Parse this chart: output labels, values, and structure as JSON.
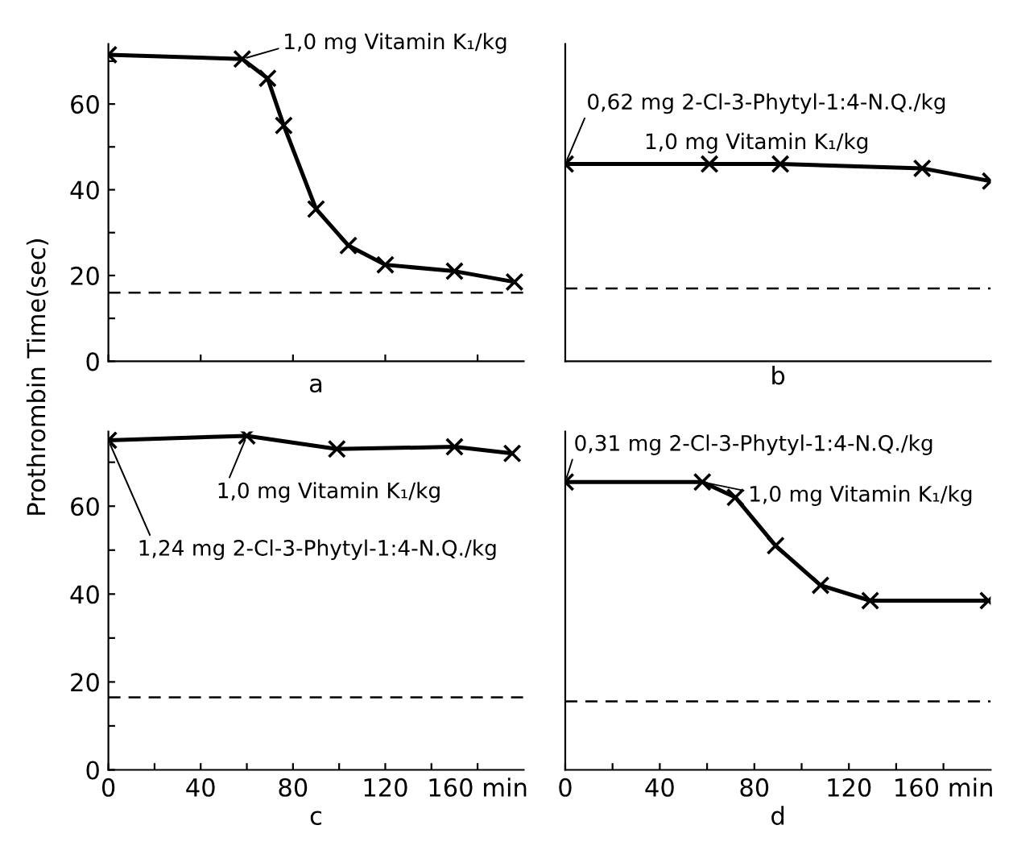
{
  "chart_data": [
    {
      "type": "line",
      "xlabel": "a",
      "ylabel": "Prothrombin Time(sec)",
      "xlim": [
        0,
        180
      ],
      "ylim": [
        0,
        74
      ],
      "xticks": [
        {
          "value": 0,
          "label": null
        },
        {
          "value": 40,
          "label": null
        },
        {
          "value": 80,
          "label": null
        },
        {
          "value": 120,
          "label": null
        },
        {
          "value": 160,
          "label": null
        }
      ],
      "yticks": [
        0,
        {
          "value": 10,
          "label": null
        },
        20,
        {
          "value": 30,
          "label": null
        },
        40,
        {
          "value": 50,
          "label": null
        },
        60,
        {
          "value": 70,
          "label": null
        }
      ],
      "tick_labels": "y",
      "marker": "cross",
      "line_style": "solid",
      "grid": false,
      "legend": false,
      "series": [
        {
          "color": "#000000",
          "x": [
            0,
            58,
            69,
            76,
            90,
            104,
            120,
            150,
            176
          ],
          "values": [
            71.5,
            70.5,
            66,
            55,
            35.5,
            27,
            22.5,
            21,
            18.5
          ]
        }
      ],
      "ref_lines": [
        {
          "axis": "y",
          "value": 16,
          "color": "#000000",
          "line_style": "dashed"
        }
      ],
      "annotations": [
        {
          "text": "1,0 mg Vitamin K₁/kg",
          "x": 58,
          "y": 70.5
        }
      ]
    },
    {
      "type": "line",
      "xlabel": "b",
      "xlim": [
        0,
        180
      ],
      "ylim": [
        0,
        74
      ],
      "tick_labels": false,
      "marker": "cross",
      "line_style": "solid",
      "grid": false,
      "legend": false,
      "series": [
        {
          "color": "#000000",
          "x": [
            0,
            61,
            91,
            151,
            180
          ],
          "values": [
            46,
            46,
            46,
            45,
            42
          ]
        }
      ],
      "ref_lines": [
        {
          "axis": "y",
          "value": 17,
          "color": "#000000",
          "line_style": "dashed"
        }
      ],
      "annotations": [
        {
          "text": "0,62 mg 2-Cl-3-Phytyl-1:4-N.Q./kg",
          "x": 0,
          "y": 46
        },
        "1,0 mg Vitamin K₁/kg"
      ]
    },
    {
      "type": "line",
      "xlabel": "c",
      "xlim": [
        0,
        180
      ],
      "ylim": [
        0,
        77
      ],
      "xticks": [
        0,
        {
          "value": 20,
          "label": null
        },
        40,
        {
          "value": 60,
          "label": null
        },
        80,
        {
          "value": 100,
          "label": null
        },
        120,
        {
          "value": 140,
          "label": null
        },
        {
          "value": 160,
          "label": "160 min"
        }
      ],
      "yticks": [
        0,
        {
          "value": 10,
          "label": null
        },
        20,
        {
          "value": 30,
          "label": null
        },
        40,
        {
          "value": 50,
          "label": null
        },
        60,
        {
          "value": 70,
          "label": null
        }
      ],
      "marker": "cross",
      "line_style": "solid",
      "grid": false,
      "legend": false,
      "series": [
        {
          "color": "#000000",
          "x": [
            0,
            60,
            99,
            150,
            175
          ],
          "values": [
            75,
            76,
            73,
            73.5,
            72
          ]
        }
      ],
      "ref_lines": [
        {
          "axis": "y",
          "value": 16.5,
          "color": "#000000",
          "line_style": "dashed"
        }
      ],
      "annotations": [
        {
          "text": "1,0 mg Vitamin K₁/kg",
          "x": 60,
          "y": 76
        },
        {
          "text": "1,24 mg 2-Cl-3-Phytyl-1:4-N.Q./kg",
          "x": 0,
          "y": 75
        }
      ]
    },
    {
      "type": "line",
      "xlabel": "d",
      "xlim": [
        0,
        180
      ],
      "ylim": [
        0,
        77
      ],
      "xticks": [
        0,
        {
          "value": 20,
          "label": null
        },
        40,
        {
          "value": 60,
          "label": null
        },
        80,
        {
          "value": 100,
          "label": null
        },
        120,
        {
          "value": 140,
          "label": null
        },
        {
          "value": 160,
          "label": "160 min"
        }
      ],
      "tick_labels": "x",
      "marker": "cross",
      "line_style": "solid",
      "grid": false,
      "legend": false,
      "series": [
        {
          "color": "#000000",
          "x": [
            0,
            58,
            72,
            89,
            108,
            129,
            179
          ],
          "values": [
            65.5,
            65.5,
            62,
            51,
            42,
            38.5,
            38.5
          ]
        }
      ],
      "ref_lines": [
        {
          "axis": "y",
          "value": 15.6,
          "color": "#000000",
          "line_style": "dashed"
        }
      ],
      "annotations": [
        {
          "text": "0,31 mg 2-Cl-3-Phytyl-1:4-N.Q./kg",
          "x": 0,
          "y": 65.5
        },
        {
          "text": "1,0 mg Vitamin K₁/kg",
          "x": 58,
          "y": 65.5
        }
      ]
    }
  ]
}
